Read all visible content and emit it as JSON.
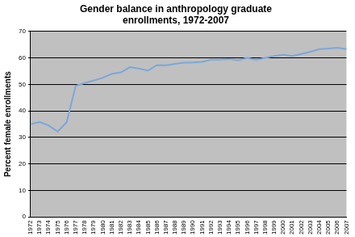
{
  "chart_data": {
    "type": "line",
    "title": "Gender balance in anthropology graduate enrollments, 1972-2007",
    "y_label": "Percent female enrollments",
    "categories": [
      "1972",
      "1973",
      "1974",
      "1975",
      "1976",
      "1977",
      "1978",
      "1979",
      "1980",
      "1981",
      "1982",
      "1983",
      "1984",
      "1985",
      "1986",
      "1987",
      "1988",
      "1989",
      "1990",
      "1991",
      "1992",
      "1993",
      "1994",
      "1995",
      "1996",
      "1997",
      "1998",
      "1999",
      "2000",
      "2001",
      "2002",
      "2003",
      "2004",
      "2005",
      "2006",
      "2007"
    ],
    "values": [
      35,
      35.8,
      34.5,
      32.2,
      35.8,
      49.5,
      50.5,
      51.5,
      52.5,
      54,
      54.5,
      56.5,
      56,
      55.2,
      57.3,
      57.2,
      57.7,
      58.2,
      58.3,
      58.5,
      59.3,
      59.3,
      59.6,
      59.1,
      60,
      59.3,
      60,
      60.7,
      61.2,
      60.7,
      61.5,
      62.3,
      63.3,
      63.5,
      63.8,
      63.3
    ],
    "color": "#7ba7d9",
    "ylim": [
      0,
      70
    ],
    "yticks": [
      0,
      10,
      20,
      30,
      40,
      50,
      60,
      70
    ],
    "grid": true
  }
}
